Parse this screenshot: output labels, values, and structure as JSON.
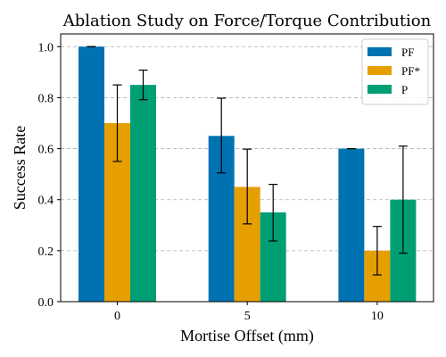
{
  "chart_data": {
    "type": "bar",
    "title": "Ablation Study on Force/Torque Contribution",
    "xlabel": "Mortise Offset (mm)",
    "ylabel": "Success Rate",
    "categories": [
      "0",
      "5",
      "10"
    ],
    "ylim": [
      0,
      1.05
    ],
    "yticks": [
      "0.0",
      "0.2",
      "0.4",
      "0.6",
      "0.8",
      "1.0"
    ],
    "grid": "y",
    "legend_position": "top-right",
    "series": [
      {
        "name": "PF",
        "color": "#0072B2",
        "values": [
          1.0,
          0.65,
          0.6
        ],
        "err_low": [
          0.0,
          0.145,
          0.0
        ],
        "err_high": [
          0.0,
          0.148,
          0.0
        ]
      },
      {
        "name": "PF*",
        "color": "#E69F00",
        "values": [
          0.7,
          0.45,
          0.2
        ],
        "err_low": [
          0.15,
          0.145,
          0.095
        ],
        "err_high": [
          0.15,
          0.148,
          0.095
        ]
      },
      {
        "name": "P",
        "color": "#009E73",
        "values": [
          0.85,
          0.35,
          0.4
        ],
        "err_low": [
          0.058,
          0.112,
          0.21
        ],
        "err_high": [
          0.058,
          0.11,
          0.21
        ]
      }
    ]
  }
}
